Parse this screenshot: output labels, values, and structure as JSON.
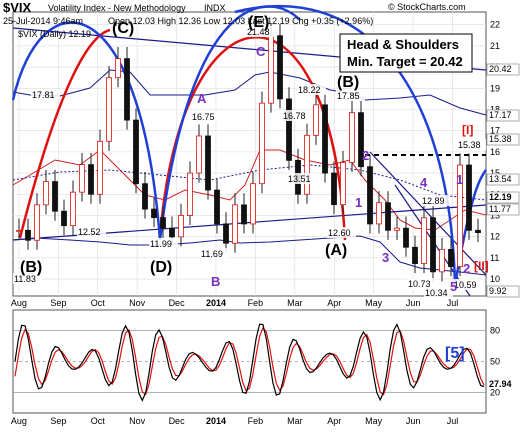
{
  "header": {
    "symbol": "$VIX",
    "name": "Volatility Index - New Methodology",
    "exchange": "INDX",
    "date_time": "25-Jul-2014 9:46am",
    "quote_line": "Open 12.03  High 12.36  Low 12.03  Last 12.19  Chg +0.35 (+2.96%)",
    "legend": "$VIX (Daily) 12.19",
    "watermark": "© StockCharts.com"
  },
  "annotation_box": {
    "line1": "Head & Shoulders",
    "line2": "Min. Target = 20.42"
  },
  "chart_data": [
    {
      "type": "candlestick",
      "title": "$VIX Volatility Index - New Methodology INDX",
      "x_ticks": [
        "Aug",
        "Sep",
        "Oct",
        "Nov",
        "Dec",
        "2014",
        "Feb",
        "Mar",
        "Apr",
        "May",
        "Jun",
        "Jul"
      ],
      "y_ticks": [
        10,
        11,
        12,
        13,
        14,
        15,
        16,
        17,
        18,
        19,
        20,
        21,
        22
      ],
      "ylim": [
        9.2,
        22.6
      ],
      "grid": true,
      "series": [
        {
          "name": "$VIX (Daily)",
          "points": [
            [
              "Aug",
              12.3
            ],
            [
              "Aug",
              11.83
            ],
            [
              "Aug",
              13.5
            ],
            [
              "Aug",
              14.6
            ],
            [
              "Sep",
              13.2
            ],
            [
              "Sep",
              12.52
            ],
            [
              "Sep",
              14.1
            ],
            [
              "Sep",
              15.4
            ],
            [
              "Sep",
              14.0
            ],
            [
              "Oct",
              16.5
            ],
            [
              "Oct",
              19.5
            ],
            [
              "Oct",
              20.4
            ],
            [
              "Oct",
              17.5
            ],
            [
              "Oct",
              14.5
            ],
            [
              "Nov",
              13.3
            ],
            [
              "Nov",
              12.9
            ],
            [
              "Nov",
              12.4
            ],
            [
              "Nov",
              11.99
            ],
            [
              "Dec",
              13.0
            ],
            [
              "Dec",
              15.0
            ],
            [
              "Dec",
              16.75
            ],
            [
              "Dec",
              14.2
            ],
            [
              "Dec",
              12.6
            ],
            [
              "2014",
              11.69
            ],
            [
              "2014",
              13.5
            ],
            [
              "2014",
              12.6
            ],
            [
              "2014",
              14.5
            ],
            [
              "2014",
              18.3
            ],
            [
              "Feb",
              21.48
            ],
            [
              "Feb",
              18.5
            ],
            [
              "Feb",
              15.6
            ],
            [
              "Feb",
              14.0
            ],
            [
              "Feb",
              16.78
            ],
            [
              "Mar",
              18.22
            ],
            [
              "Mar",
              15.0
            ],
            [
              "Mar",
              13.51
            ],
            [
              "Mar",
              15.5
            ],
            [
              "Apr",
              17.85
            ],
            [
              "Apr",
              15.3
            ],
            [
              "Apr",
              12.6
            ],
            [
              "May",
              13.6
            ],
            [
              "May",
              12.3
            ],
            [
              "May",
              12.4
            ],
            [
              "Jun",
              11.5
            ],
            [
              "Jun",
              10.73
            ],
            [
              "Jun",
              12.89
            ],
            [
              "Jun",
              10.34
            ],
            [
              "Jul",
              11.4
            ],
            [
              "Jul",
              10.59
            ],
            [
              "Jul",
              15.38
            ],
            [
              "Jul",
              12.3
            ],
            [
              "Jul",
              12.19
            ]
          ],
          "labelled_values": [
            11.83,
            12.52,
            17.81,
            20.4,
            16.75,
            11.99,
            11.69,
            21.48,
            16.78,
            18.22,
            13.51,
            17.85,
            12.6,
            12.89,
            10.73,
            10.34,
            10.59,
            15.38
          ]
        }
      ],
      "price_tags_right": [
        20.42,
        17.17,
        15.38,
        13.54,
        12.19,
        11.77,
        9.92
      ],
      "wave_labels": [
        "(C)",
        "(E)",
        "(B)",
        "(D)",
        "(B)",
        "(A)",
        "A",
        "B",
        "C",
        "(C)",
        "1",
        "2",
        "3",
        "4",
        "5",
        "1",
        "2",
        "[I]",
        "[II]"
      ]
    },
    {
      "type": "line",
      "title": "",
      "x_ticks": [
        "Aug",
        "Sep",
        "Oct",
        "Nov",
        "Dec",
        "2014",
        "Feb",
        "Mar",
        "Apr",
        "May",
        "Jun",
        "Jul"
      ],
      "y_ticks": [
        20,
        50,
        80
      ],
      "ylim": [
        0,
        100
      ],
      "series": [
        {
          "name": "",
          "last_value": 27.94
        }
      ],
      "wave_labels": [
        "[5]"
      ]
    }
  ]
}
